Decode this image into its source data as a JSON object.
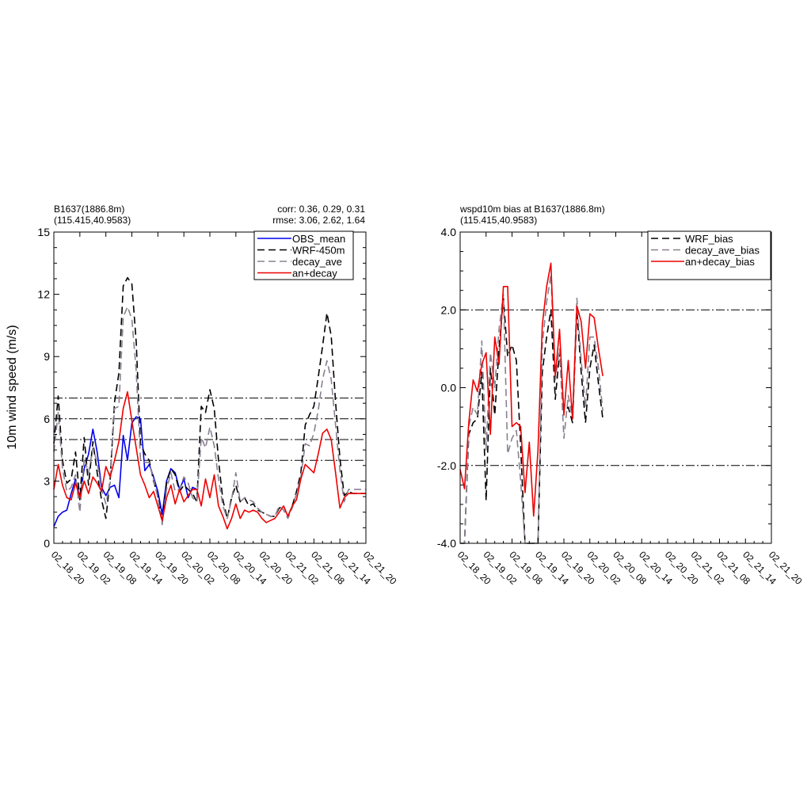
{
  "chart_data": [
    {
      "type": "line",
      "title_line1": "B1637(1886.8m)",
      "title_line2": "(115.415,40.9583)",
      "stats_line1": "corr:  0.36, 0.29, 0.31",
      "stats_line2": "rmse: 3.06, 2.62, 1.64",
      "ylabel": "10m wind speed (m/s)",
      "xlabel": "",
      "ylim": [
        0,
        15
      ],
      "yticks": [
        "0",
        "3",
        "6",
        "9",
        "12",
        "15"
      ],
      "xlim": [
        0,
        72
      ],
      "xticks": [
        "02_18_20",
        "02_19_02",
        "02_19_08",
        "02_19_14",
        "02_19_20",
        "02_20_02",
        "02_20_08",
        "02_20_14",
        "02_20_20",
        "02_21_02",
        "02_21_08",
        "02_21_14",
        "02_21_20"
      ],
      "reference_lines": [
        4,
        5,
        6,
        7
      ],
      "legend_position": "top-right",
      "series": [
        {
          "name": "OBS_mean",
          "color": "#0000ee",
          "dash": "solid",
          "x": [
            0,
            1,
            2,
            3,
            4,
            5,
            6,
            7,
            8,
            9,
            10,
            11,
            12,
            13,
            14,
            15,
            16,
            17,
            18,
            19,
            20,
            21,
            22,
            23,
            24,
            25,
            26,
            27,
            28,
            29,
            30,
            31,
            32,
            33
          ],
          "y": [
            0.8,
            1.3,
            1.5,
            1.6,
            2.4,
            3.1,
            2.2,
            3.6,
            4.3,
            5.5,
            4.4,
            2.7,
            2.3,
            2.7,
            2.8,
            2.2,
            5.2,
            4.0,
            5.8,
            6.1,
            6.0,
            3.5,
            3.8,
            3.2,
            2.5,
            1.4,
            3.0,
            3.6,
            3.4,
            2.6,
            3.1,
            2.2,
            2.7,
            2.6
          ]
        },
        {
          "name": "WRF-450m",
          "color": "#000000",
          "dash": "long",
          "x": [
            0,
            1,
            2,
            3,
            4,
            5,
            6,
            7,
            8,
            9,
            10,
            11,
            12,
            13,
            14,
            15,
            16,
            17,
            18,
            19,
            20,
            21,
            22,
            23,
            24,
            25,
            26,
            27,
            28,
            29,
            30,
            31,
            32,
            33,
            34,
            35,
            36,
            37,
            38,
            39,
            40,
            41,
            42,
            43,
            44,
            45,
            46,
            47,
            48,
            49,
            50,
            51,
            52,
            53,
            54,
            55,
            56,
            57,
            58,
            59,
            60,
            61,
            62,
            63,
            64,
            65,
            66,
            67,
            68,
            69,
            70,
            71,
            72
          ],
          "y": [
            4.8,
            7.1,
            4.0,
            2.9,
            3.1,
            4.4,
            2.1,
            5.1,
            2.8,
            4.9,
            3.4,
            2.1,
            1.2,
            3.1,
            6.8,
            8.2,
            12.4,
            12.8,
            12.5,
            9.7,
            4.8,
            4.3,
            4.0,
            3.0,
            2.3,
            1.0,
            2.9,
            3.6,
            3.3,
            2.5,
            2.8,
            2.6,
            2.4,
            2.0,
            6.6,
            6.3,
            7.4,
            6.5,
            4.0,
            2.1,
            1.2,
            2.2,
            2.8,
            2.0,
            2.2,
            1.8,
            1.9,
            1.6,
            1.5,
            1.4,
            1.3,
            1.3,
            1.7,
            1.8,
            1.3,
            1.8,
            2.5,
            3.4,
            5.7,
            6.2,
            6.6,
            8.0,
            9.5,
            11.1,
            10.0,
            6.8,
            4.1,
            2.3,
            2.5,
            2.4,
            2.4,
            2.4,
            2.4
          ]
        },
        {
          "name": "decay_ave",
          "color": "#8a8090",
          "dash": "long",
          "x": [
            0,
            1,
            2,
            3,
            4,
            5,
            6,
            7,
            8,
            9,
            10,
            11,
            12,
            13,
            14,
            15,
            16,
            17,
            18,
            19,
            20,
            21,
            22,
            23,
            24,
            25,
            26,
            27,
            28,
            29,
            30,
            31,
            32,
            33,
            34,
            35,
            36,
            37,
            38,
            39,
            40,
            41,
            42,
            43,
            44,
            45,
            46,
            47,
            48,
            49,
            50,
            51,
            52,
            53,
            54,
            55,
            56,
            57,
            58,
            59,
            60,
            61,
            62,
            63,
            64,
            65,
            66,
            67,
            68,
            69,
            70,
            71,
            72
          ],
          "y": [
            4.4,
            6.3,
            3.6,
            2.5,
            2.7,
            3.3,
            1.5,
            4.1,
            3.4,
            4.6,
            3.9,
            2.6,
            1.9,
            2.9,
            6.5,
            6.6,
            10.9,
            11.4,
            10.8,
            8.3,
            4.0,
            3.9,
            3.9,
            3.1,
            2.2,
            0.9,
            2.6,
            3.4,
            2.5,
            2.6,
            3.2,
            2.9,
            2.2,
            2.0,
            5.1,
            4.6,
            5.6,
            4.7,
            3.1,
            1.8,
            1.2,
            2.1,
            3.4,
            2.0,
            2.2,
            2.1,
            2.0,
            1.7,
            1.5,
            1.4,
            1.3,
            1.3,
            1.8,
            1.6,
            1.2,
            1.7,
            2.4,
            3.2,
            4.8,
            4.7,
            5.3,
            6.4,
            7.9,
            8.8,
            7.9,
            5.7,
            3.5,
            2.0,
            2.6,
            2.6,
            2.6,
            2.6,
            2.6
          ]
        },
        {
          "name": "an+decay",
          "color": "#ee0000",
          "dash": "solid",
          "x": [
            0,
            1,
            2,
            3,
            4,
            5,
            6,
            7,
            8,
            9,
            10,
            11,
            12,
            13,
            14,
            15,
            16,
            17,
            18,
            19,
            20,
            21,
            22,
            23,
            24,
            25,
            26,
            27,
            28,
            29,
            30,
            31,
            32,
            33,
            34,
            35,
            36,
            37,
            38,
            39,
            40,
            41,
            42,
            43,
            44,
            45,
            46,
            47,
            48,
            49,
            50,
            51,
            52,
            53,
            54,
            55,
            56,
            57,
            58,
            59,
            60,
            61,
            62,
            63,
            64,
            65,
            66,
            67,
            68,
            69,
            70,
            71,
            72
          ],
          "y": [
            2.6,
            3.8,
            2.8,
            2.2,
            2.1,
            2.9,
            2.2,
            3.0,
            2.4,
            3.2,
            2.9,
            2.5,
            3.7,
            3.2,
            4.0,
            4.9,
            6.5,
            7.3,
            5.9,
            4.6,
            3.3,
            2.8,
            2.2,
            2.5,
            1.8,
            1.1,
            2.2,
            2.8,
            1.9,
            2.6,
            2.0,
            2.3,
            2.6,
            2.6,
            1.8,
            3.1,
            2.2,
            3.3,
            1.8,
            1.3,
            0.7,
            1.2,
            1.9,
            1.2,
            1.6,
            1.5,
            1.6,
            1.5,
            1.2,
            1.0,
            1.1,
            1.2,
            1.5,
            1.8,
            1.3,
            1.8,
            2.1,
            3.1,
            3.8,
            3.6,
            3.4,
            4.3,
            5.3,
            5.5,
            5.0,
            3.4,
            1.7,
            2.2,
            2.4,
            2.4,
            2.4,
            2.4,
            2.4
          ]
        }
      ]
    },
    {
      "type": "line",
      "title_line1": "wspd10m bias at B1637(1886.8m)",
      "title_line2": "(115.415,40.9583)",
      "ylabel": "",
      "xlabel": "",
      "ylim": [
        -4,
        4
      ],
      "yticks": [
        "-4.0",
        "-2.0",
        "0.0",
        "2.0",
        "4.0"
      ],
      "xlim": [
        0,
        72
      ],
      "xticks": [
        "02_18_20",
        "02_19_02",
        "02_19_08",
        "02_19_14",
        "02_19_20",
        "02_20_02",
        "02_20_08",
        "02_20_14",
        "02_20_20",
        "02_21_02",
        "02_21_08",
        "02_21_14",
        "02_21_20"
      ],
      "reference_lines": [
        -2,
        2
      ],
      "legend_position": "top-right",
      "series": [
        {
          "name": "WRF_bias",
          "color": "#000000",
          "dash": "long",
          "x": [
            0,
            1,
            2,
            3,
            4,
            5,
            6,
            7,
            8,
            9,
            10,
            11,
            12,
            13,
            14,
            15,
            16,
            17,
            18,
            19,
            20,
            21,
            22,
            23,
            24,
            25,
            26,
            27,
            28,
            29,
            30,
            31,
            32,
            33,
            34,
            35
          ],
          "y": [
            -4.0,
            -4.0,
            -1.2,
            -0.9,
            -0.8,
            0.4,
            -2.9,
            0.5,
            -0.7,
            1.0,
            2.3,
            0.8,
            1.1,
            0.7,
            -1.5,
            -4.0,
            -4.0,
            -4.0,
            -4.0,
            0.4,
            1.3,
            2.0,
            -0.3,
            0.9,
            -0.6,
            -0.5,
            -0.9,
            2.0,
            0.4,
            -0.9,
            0.5,
            1.1,
            0.1,
            -0.8,
            null,
            null
          ]
        },
        {
          "name": "decay_ave_bias",
          "color": "#8a8090",
          "dash": "long",
          "x": [
            0,
            1,
            2,
            3,
            4,
            5,
            6,
            7,
            8,
            9,
            10,
            11,
            12,
            13,
            14,
            15,
            16,
            17,
            18,
            19,
            20,
            21,
            22,
            23,
            24,
            25,
            26,
            27,
            28,
            29,
            30,
            31,
            32,
            33
          ],
          "y": [
            -4.0,
            -4.0,
            -1.0,
            -0.5,
            -0.7,
            1.2,
            -1.6,
            0.9,
            0.0,
            1.5,
            2.4,
            -1.7,
            -1.3,
            -1.1,
            -2.4,
            -4.0,
            -4.0,
            -4.0,
            -4.0,
            1.1,
            2.2,
            2.9,
            0.2,
            1.0,
            -1.3,
            -0.2,
            -0.8,
            2.3,
            0.7,
            -0.5,
            1.3,
            1.3,
            0.5,
            -0.6
          ]
        },
        {
          "name": "an+decay_bias",
          "color": "#ee0000",
          "dash": "solid",
          "x": [
            0,
            1,
            2,
            3,
            4,
            5,
            6,
            7,
            8,
            9,
            10,
            11,
            12,
            13,
            14,
            15,
            16,
            17,
            18,
            19,
            20,
            21,
            22,
            23,
            24,
            25,
            26,
            27,
            28,
            29,
            30,
            31,
            32,
            33
          ],
          "y": [
            -2.1,
            -2.6,
            -0.9,
            0.2,
            -0.1,
            0.6,
            0.9,
            -1.2,
            1.3,
            0.6,
            2.6,
            2.6,
            -1.0,
            -0.9,
            -1.0,
            -2.7,
            -1.4,
            -3.3,
            -1.6,
            1.6,
            2.6,
            3.2,
            0.3,
            1.5,
            -0.7,
            0.7,
            -0.8,
            2.1,
            1.7,
            0.5,
            1.9,
            1.8,
            1.0,
            0.3
          ]
        }
      ]
    }
  ]
}
